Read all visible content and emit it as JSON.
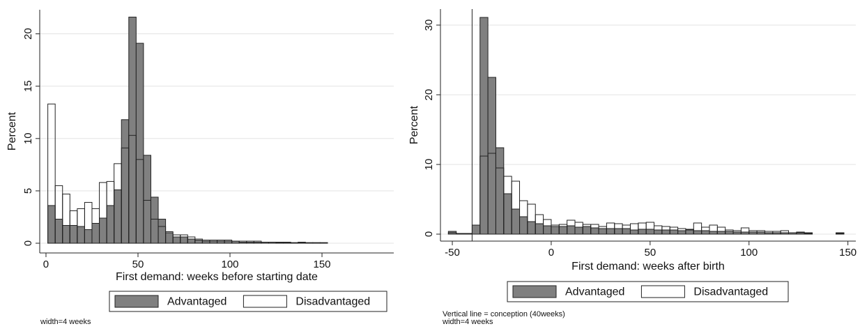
{
  "chart_data": [
    {
      "type": "histogram",
      "x_label": "First demand: weeks before starting date",
      "y_label": "Percent",
      "bins": [
        1,
        5,
        9,
        13,
        17,
        21,
        25,
        29,
        33,
        37,
        41,
        45,
        49,
        53,
        57,
        61,
        65,
        69,
        73,
        77,
        81,
        85,
        89,
        93,
        97,
        101,
        105,
        109,
        113,
        117,
        121,
        125,
        129,
        133,
        137,
        141,
        145,
        149,
        153
      ],
      "series": [
        {
          "name": "Advantaged",
          "color": "#808080",
          "values": [
            3.6,
            2.3,
            1.7,
            1.7,
            1.6,
            1.3,
            1.9,
            2.4,
            3.6,
            5.1,
            11.8,
            21.6,
            19.1,
            8.4,
            4.4,
            2.3,
            1.0,
            0.6,
            0.6,
            0.4,
            0.3,
            0.2,
            0.2,
            0.2,
            0.2,
            0.2,
            0.1,
            0.1,
            0.1,
            0.1,
            0.1,
            0.05,
            0.05,
            0.05,
            0.05,
            0.05,
            0.05,
            0.05
          ]
        },
        {
          "name": "Disadvantaged",
          "color": "#ffffff",
          "values": [
            13.3,
            5.5,
            4.7,
            3.1,
            3.3,
            3.9,
            3.3,
            5.8,
            5.9,
            7.6,
            9.1,
            10.3,
            8.0,
            4.1,
            2.3,
            1.6,
            1.1,
            0.8,
            0.8,
            0.6,
            0.4,
            0.3,
            0.3,
            0.3,
            0.3,
            0.2,
            0.2,
            0.2,
            0.2,
            0.1,
            0.1,
            0.1,
            0.1,
            0.05,
            0.1,
            0.05,
            0.05,
            0.05
          ]
        }
      ],
      "xlim": [
        -3.4,
        189
      ],
      "ylim": [
        -0.93,
        22.3
      ],
      "xticks": [
        0,
        50,
        100,
        150
      ],
      "yticks": [
        0,
        5,
        10,
        15,
        20
      ],
      "grid": true,
      "legend": "bottom",
      "notes": [
        "width=4 weeks"
      ]
    },
    {
      "type": "histogram",
      "x_label": "First demand: weeks after birth",
      "y_label": "Percent",
      "bins": [
        -52,
        -48,
        -44,
        -40,
        -36,
        -32,
        -28,
        -24,
        -20,
        -16,
        -12,
        -8,
        -4,
        0,
        4,
        8,
        12,
        16,
        20,
        24,
        28,
        32,
        36,
        40,
        44,
        48,
        52,
        56,
        60,
        64,
        68,
        72,
        76,
        80,
        84,
        88,
        92,
        96,
        100,
        104,
        108,
        112,
        116,
        120,
        124,
        128,
        132,
        136,
        140,
        144,
        148
      ],
      "series": [
        {
          "name": "Advantaged",
          "color": "#808080",
          "values": [
            0.4,
            0.1,
            0.1,
            1.3,
            31.1,
            22.5,
            12.4,
            5.8,
            3.6,
            2.5,
            1.8,
            1.5,
            1.2,
            1.1,
            1.1,
            1.2,
            1.0,
            1.1,
            0.9,
            0.8,
            0.8,
            0.8,
            0.8,
            0.6,
            0.7,
            0.7,
            0.6,
            0.6,
            0.6,
            0.5,
            0.6,
            0.5,
            0.5,
            0.4,
            0.4,
            0.4,
            0.3,
            0.3,
            0.3,
            0.3,
            0.2,
            0.2,
            0.2,
            0.2,
            0.2,
            0.1,
            0,
            0,
            0,
            0.2
          ]
        },
        {
          "name": "Disadvantaged",
          "color": "#ffffff",
          "values": [
            0.2,
            0.1,
            0,
            0,
            11.2,
            11.6,
            9.5,
            8.3,
            7.6,
            4.8,
            4.3,
            2.8,
            2.1,
            1.3,
            1.4,
            2.0,
            1.7,
            1.4,
            1.4,
            1.1,
            1.6,
            1.5,
            1.3,
            1.5,
            1.6,
            1.7,
            1.2,
            1.1,
            1.0,
            0.8,
            0.7,
            1.6,
            1.0,
            1.3,
            1.0,
            0.6,
            0.5,
            0.9,
            0.5,
            0.5,
            0.4,
            0.4,
            0.5,
            0.2,
            0.3,
            0.2,
            0,
            0,
            0,
            0.1
          ]
        }
      ],
      "xlim": [
        -56,
        154
      ],
      "ylim": [
        -1.0,
        32.3
      ],
      "xticks": [
        -50,
        0,
        50,
        100,
        150
      ],
      "yticks": [
        0,
        10,
        20,
        30
      ],
      "grid": true,
      "vline": -40,
      "legend": "bottom",
      "notes": [
        "Vertical line = conception (40weeks)",
        "width=4 weeks"
      ]
    }
  ]
}
